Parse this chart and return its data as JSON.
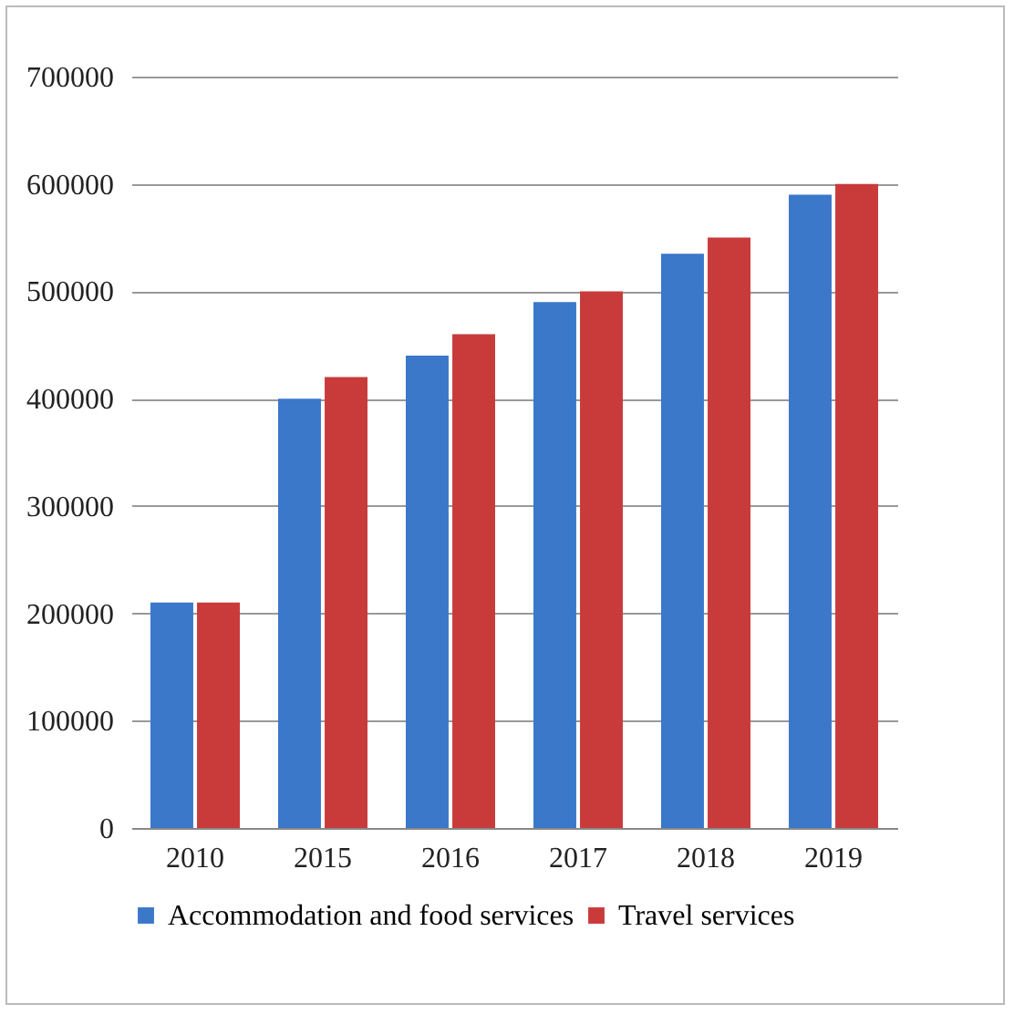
{
  "chart_data": {
    "type": "bar",
    "categories": [
      "2010",
      "2015",
      "2016",
      "2017",
      "2018",
      "2019"
    ],
    "series": [
      {
        "name": "Accommodation and food services",
        "color": "#3b78c9",
        "values": [
          210000,
          400000,
          440000,
          490000,
          535000,
          590000
        ]
      },
      {
        "name": "Travel services",
        "color": "#c93b3b",
        "values": [
          210000,
          420000,
          460000,
          500000,
          550000,
          600000
        ]
      }
    ],
    "ylim": [
      0,
      700000
    ],
    "yticks": [
      0,
      100000,
      200000,
      300000,
      400000,
      500000,
      600000,
      700000
    ],
    "grid": "y",
    "legend": "bottom"
  }
}
